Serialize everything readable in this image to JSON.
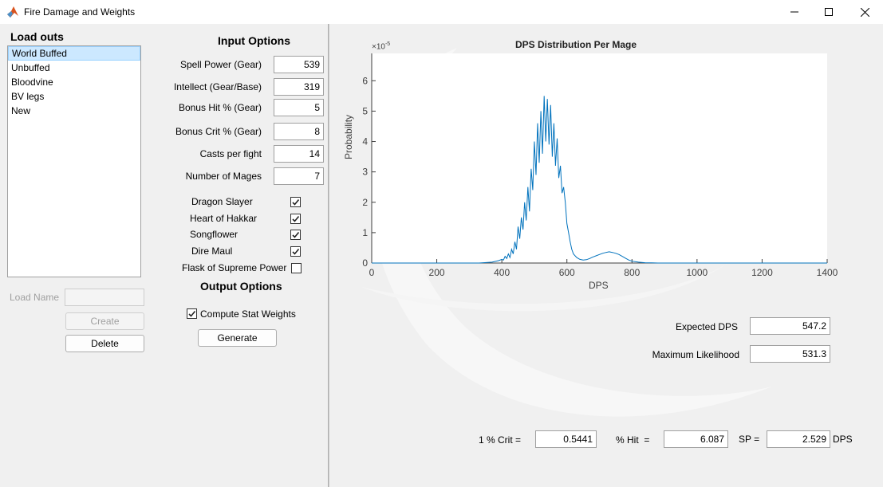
{
  "window": {
    "title": "Fire Damage and Weights"
  },
  "loadouts": {
    "heading": "Load outs",
    "items": [
      "World Buffed",
      "Unbuffed",
      "Bloodvine",
      "BV legs",
      "New"
    ],
    "selected_index": 0,
    "load_name_label": "Load Name",
    "load_name_value": "",
    "create_label": "Create",
    "delete_label": "Delete"
  },
  "inputs": {
    "heading": "Input Options",
    "spell_power_label": "Spell Power (Gear)",
    "spell_power_value": "539",
    "intellect_label": "Intellect (Gear/Base)",
    "intellect_value": "319",
    "bonus_hit_label": "Bonus Hit % (Gear)",
    "bonus_hit_value": "5",
    "bonus_crit_label": "Bonus Crit % (Gear)",
    "bonus_crit_value": "8",
    "casts_label": "Casts per fight",
    "casts_value": "14",
    "mages_label": "Number of Mages",
    "mages_value": "7",
    "buffs": [
      {
        "label": "Dragon Slayer",
        "checked": true
      },
      {
        "label": "Heart of Hakkar",
        "checked": true
      },
      {
        "label": "Songflower",
        "checked": true
      },
      {
        "label": "Dire Maul",
        "checked": true
      },
      {
        "label": "Flask of Supreme Power",
        "checked": false
      }
    ]
  },
  "outputs": {
    "heading": "Output Options",
    "compute_weights_label": "Compute Stat Weights",
    "compute_weights_checked": true,
    "generate_label": "Generate"
  },
  "results": {
    "expected_dps_label": "Expected DPS",
    "expected_dps_value": "547.2",
    "max_likelihood_label": "Maximum Likelihood",
    "max_likelihood_value": "531.3",
    "crit_label": "1 % Crit =",
    "crit_value": "0.5441",
    "hit_label": "% Hit  =",
    "hit_value": "6.087",
    "sp_label": "SP =",
    "sp_value": "2.529",
    "dps_unit": "DPS"
  },
  "colors": {
    "line": "#0072bd",
    "selection": "#cce8ff",
    "axis": "#404040"
  },
  "chart_data": {
    "type": "line",
    "title": "DPS Distribution Per Mage",
    "xlabel": "DPS",
    "ylabel": "Probability",
    "y_exponent_label": "×10",
    "y_exponent_power": "-5",
    "xlim": [
      0,
      1400
    ],
    "ylim": [
      0,
      6.9
    ],
    "xticks": [
      "0",
      "200",
      "400",
      "600",
      "800",
      "1000",
      "1200",
      "1400"
    ],
    "yticks": [
      "0",
      "1",
      "2",
      "3",
      "4",
      "5",
      "6"
    ],
    "grid": false,
    "series": [
      {
        "x": [
          0,
          330,
          370,
          390,
          400,
          405,
          410,
          415,
          420,
          425,
          430,
          435,
          440,
          445,
          450,
          455,
          460,
          465,
          470,
          475,
          480,
          485,
          490,
          495,
          500,
          505,
          510,
          515,
          520,
          525,
          530,
          535,
          540,
          545,
          550,
          555,
          560,
          565,
          570,
          575,
          580,
          585,
          590,
          595,
          600,
          605,
          610,
          615,
          620,
          630,
          640,
          650,
          660,
          670,
          680,
          690,
          700,
          710,
          720,
          730,
          740,
          750,
          760,
          770,
          780,
          790,
          800,
          820,
          840,
          860,
          880,
          900,
          1000,
          1200,
          1400
        ],
        "y": [
          0,
          0,
          0.03,
          0.08,
          0.12,
          0.1,
          0.22,
          0.15,
          0.3,
          0.18,
          0.45,
          0.3,
          0.7,
          0.45,
          1.2,
          0.8,
          1.5,
          1.1,
          2.0,
          1.4,
          2.5,
          1.7,
          3.1,
          2.4,
          4.0,
          2.9,
          4.6,
          3.3,
          5.0,
          3.6,
          5.5,
          4.0,
          5.4,
          3.9,
          5.2,
          3.5,
          4.6,
          3.2,
          4.1,
          2.8,
          3.2,
          2.3,
          2.5,
          2.0,
          1.3,
          1.0,
          0.7,
          0.45,
          0.3,
          0.18,
          0.12,
          0.1,
          0.11,
          0.15,
          0.2,
          0.24,
          0.28,
          0.32,
          0.35,
          0.37,
          0.35,
          0.32,
          0.28,
          0.22,
          0.16,
          0.1,
          0.06,
          0.03,
          0.01,
          0.005,
          0,
          0,
          0,
          0,
          0
        ]
      }
    ]
  }
}
